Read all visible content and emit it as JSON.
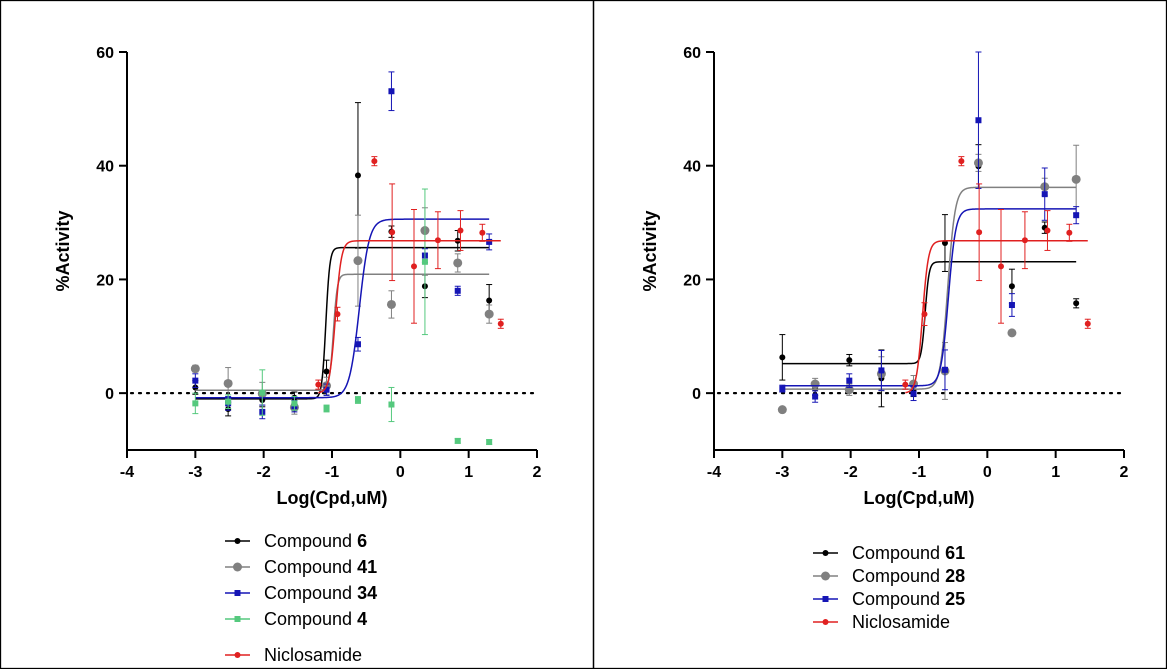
{
  "chart_data": [
    {
      "type": "scatter",
      "xlabel": "Log(Cpd,uM)",
      "ylabel": "%Activity",
      "xlim": [
        -4,
        2
      ],
      "ylim": [
        -10,
        60
      ],
      "xticks": [
        "-4",
        "-3",
        "-2",
        "-1",
        "0",
        "1",
        "2"
      ],
      "yticks": [
        "0",
        "20",
        "40",
        "60"
      ],
      "reference_line_y": 0,
      "legend_position": "bottom",
      "series": [
        {
          "legend_prefix": "Compound",
          "legend_number": "6",
          "color": "#000000",
          "marker": "circle",
          "x": [
            -3,
            -2.52,
            -2.02,
            -1.55,
            -1.08,
            -0.62,
            -0.13,
            0.36,
            0.84,
            1.3
          ],
          "y": [
            1.0,
            -2.8,
            -1.2,
            -0.8,
            3.8,
            38.3,
            28.4,
            18.8,
            26.8,
            16.3
          ],
          "err": [
            1.2,
            1.2,
            1.2,
            1.0,
            2.0,
            12.8,
            1.0,
            2.0,
            1.8,
            2.8
          ],
          "fit": {
            "bottom": -1.0,
            "top": 25.6,
            "logEC50": -1.09,
            "hill": 15
          }
        },
        {
          "legend_prefix": "Compound",
          "legend_number": "41",
          "color": "#808080",
          "marker": "circle",
          "x": [
            -3,
            -2.52,
            -2.02,
            -1.55,
            -1.08,
            -0.62,
            -0.13,
            0.36,
            0.84,
            1.3
          ],
          "y": [
            4.3,
            1.7,
            -0.1,
            -2.5,
            1.3,
            23.3,
            15.6,
            28.6,
            22.9,
            13.9
          ],
          "err": [
            0.6,
            2.8,
            2.0,
            1.2,
            1.5,
            8.0,
            2.4,
            4.0,
            1.6,
            1.6
          ],
          "fit": {
            "bottom": 0.5,
            "top": 20.9,
            "logEC50": -0.98,
            "hill": 15
          }
        },
        {
          "legend_prefix": "Compound",
          "legend_number": "34",
          "color": "#1515b5",
          "marker": "square",
          "x": [
            -3,
            -2.52,
            -2.02,
            -1.55,
            -1.08,
            -0.62,
            -0.13,
            0.36,
            0.84,
            1.3
          ],
          "y": [
            2.2,
            -1.8,
            -3.3,
            -2.3,
            0.6,
            8.6,
            53.1,
            24.2,
            18.0,
            26.6
          ],
          "err": [
            1.2,
            1.2,
            1.2,
            1.0,
            1.0,
            1.2,
            3.4,
            1.2,
            0.8,
            1.4
          ],
          "fit": {
            "bottom": -0.8,
            "top": 30.6,
            "logEC50": -0.6,
            "hill": 6
          }
        },
        {
          "legend_prefix": "Compound",
          "legend_number": "4",
          "color": "#55c97e",
          "marker": "square",
          "x": [
            -3,
            -2.52,
            -2.02,
            -1.55,
            -1.08,
            -0.62,
            -0.13,
            0.36,
            0.84,
            1.3
          ],
          "y": [
            -1.8,
            -1.5,
            0.1,
            -1.8,
            -2.7,
            -1.2,
            -2.0,
            23.1,
            -8.4,
            -8.6
          ],
          "err": [
            1.8,
            1.2,
            4.0,
            1.2,
            0.6,
            0.6,
            3.0,
            12.8,
            0.4,
            0.4
          ],
          "fit": null
        },
        {
          "legend_prefix": "",
          "legend_number": "Niclosamide",
          "color": "#e02020",
          "marker": "circle",
          "x": [
            -1.2,
            -0.92,
            -0.38,
            -0.12,
            0.2,
            0.55,
            0.88,
            1.2,
            1.47
          ],
          "y": [
            1.5,
            13.9,
            40.8,
            28.3,
            22.3,
            26.9,
            28.6,
            28.2,
            12.2
          ],
          "err": [
            0.8,
            1.2,
            0.8,
            8.5,
            10.0,
            5.0,
            3.5,
            1.5,
            0.8
          ],
          "fit": {
            "bottom": 0.0,
            "top": 26.8,
            "logEC50": -0.95,
            "hill": 10
          }
        }
      ]
    },
    {
      "type": "scatter",
      "xlabel": "Log(Cpd,uM)",
      "ylabel": "%Activity",
      "xlim": [
        -4,
        2
      ],
      "ylim": [
        -10,
        60
      ],
      "xticks": [
        "-4",
        "-3",
        "-2",
        "-1",
        "0",
        "1",
        "2"
      ],
      "yticks": [
        "0",
        "20",
        "40",
        "60"
      ],
      "reference_line_y": 0,
      "legend_position": "bottom",
      "series": [
        {
          "legend_prefix": "Compound",
          "legend_number": "61",
          "color": "#000000",
          "marker": "circle",
          "x": [
            -3,
            -2.52,
            -2.02,
            -1.55,
            -1.08,
            -0.62,
            -0.13,
            0.36,
            0.84,
            1.3
          ],
          "y": [
            6.3,
            0.8,
            5.8,
            2.6,
            0.4,
            26.4,
            39.9,
            18.8,
            29.1,
            15.8
          ],
          "err": [
            4.0,
            1.2,
            1.0,
            5.0,
            1.0,
            5.0,
            3.8,
            3.0,
            1.0,
            0.8
          ],
          "fit": {
            "bottom": 5.2,
            "top": 23.1,
            "logEC50": -0.91,
            "hill": 15
          }
        },
        {
          "legend_prefix": "Compound",
          "legend_number": "28",
          "color": "#808080",
          "marker": "circle",
          "x": [
            -3,
            -2.52,
            -2.02,
            -1.55,
            -1.08,
            -0.62,
            -0.13,
            0.36,
            0.84,
            1.3
          ],
          "y": [
            -2.9,
            1.6,
            0.6,
            3.4,
            1.6,
            3.9,
            40.5,
            10.6,
            36.3,
            37.6
          ],
          "err": [
            0.4,
            1.0,
            1.0,
            3.0,
            1.5,
            5.0,
            1.5,
            0.5,
            1.5,
            6.0
          ],
          "fit": {
            "bottom": 0.7,
            "top": 36.2,
            "logEC50": -0.58,
            "hill": 8
          }
        },
        {
          "legend_prefix": "Compound",
          "legend_number": "25",
          "color": "#1515b5",
          "marker": "square",
          "x": [
            -3,
            -2.52,
            -2.02,
            -1.55,
            -1.08,
            -0.62,
            -0.13,
            0.36,
            0.84,
            1.3
          ],
          "y": [
            0.8,
            -0.6,
            2.2,
            4.0,
            -0.1,
            4.1,
            48.0,
            15.5,
            35.0,
            31.3
          ],
          "err": [
            0.6,
            1.0,
            1.2,
            3.5,
            1.2,
            3.5,
            12.0,
            2.0,
            4.6,
            1.5
          ],
          "fit": {
            "bottom": 1.3,
            "top": 32.4,
            "logEC50": -0.57,
            "hill": 8
          }
        },
        {
          "legend_prefix": "",
          "legend_number": "Niclosamide",
          "color": "#e02020",
          "marker": "circle",
          "x": [
            -1.2,
            -0.92,
            -0.38,
            -0.12,
            0.2,
            0.55,
            0.88,
            1.2,
            1.47
          ],
          "y": [
            1.5,
            13.9,
            40.8,
            28.3,
            22.3,
            26.9,
            28.6,
            28.2,
            12.2
          ],
          "err": [
            0.8,
            2.0,
            0.8,
            8.5,
            10.0,
            5.0,
            3.5,
            1.5,
            0.8
          ],
          "fit": {
            "bottom": 0.0,
            "top": 26.8,
            "logEC50": -0.95,
            "hill": 10
          }
        }
      ]
    }
  ]
}
